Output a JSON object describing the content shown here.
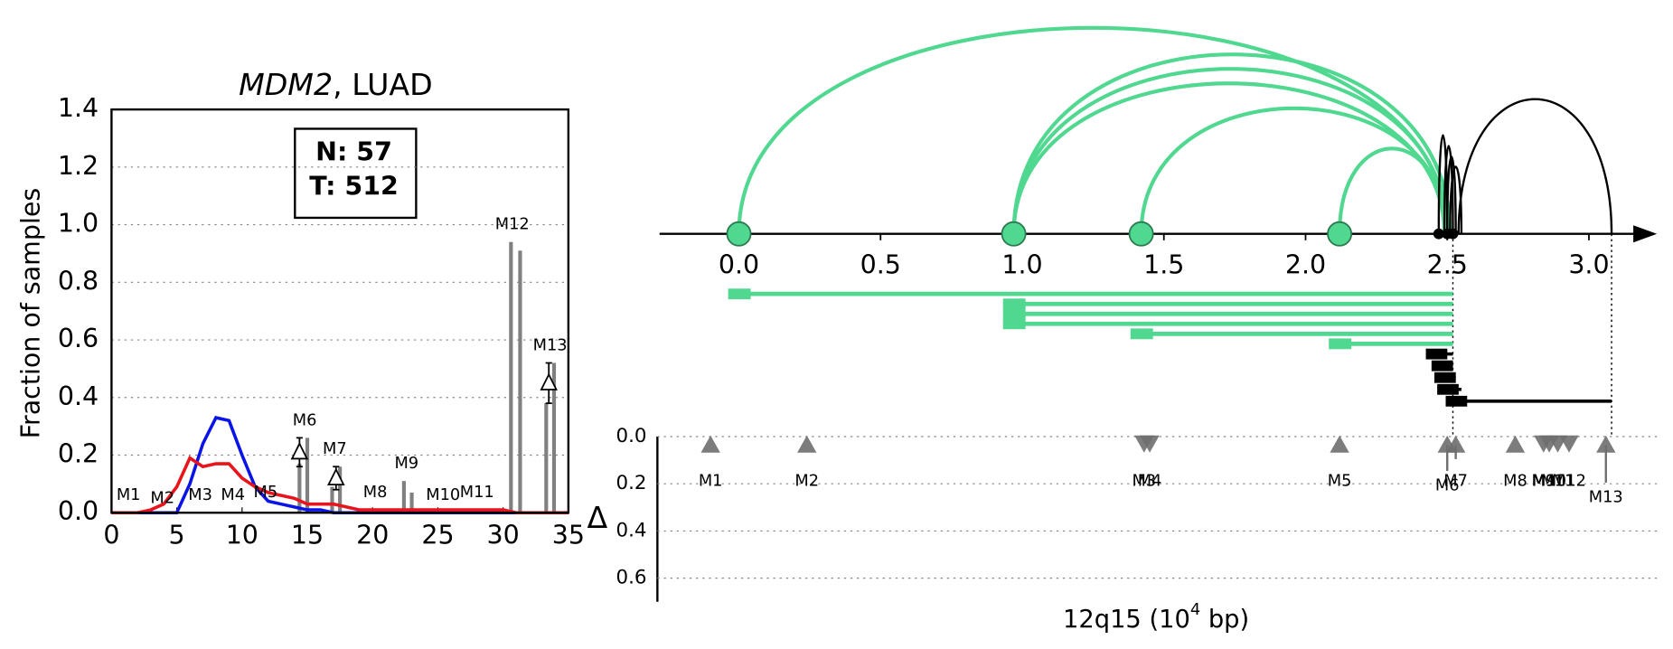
{
  "chart_data": [
    {
      "type": "line",
      "title_parts": [
        "MDM2",
        ", LUAD"
      ],
      "ylabel": "Fraction of samples",
      "annotation": [
        "N: 57",
        "T: 512"
      ],
      "xlim": [
        0,
        35
      ],
      "xticks": [
        0,
        5,
        10,
        15,
        20,
        25,
        30,
        35
      ],
      "ylim": [
        0,
        1.4
      ],
      "yticks": [
        {
          "value": 0,
          "label": "0.0"
        },
        {
          "value": 0.2,
          "label": "0.2"
        },
        {
          "value": 0.4,
          "label": "0.4"
        },
        {
          "value": 0.6,
          "label": "0.6"
        },
        {
          "value": 0.8,
          "label": "0.8"
        },
        {
          "value": 1,
          "label": "1.0"
        },
        {
          "value": 1.2,
          "label": "1.2"
        },
        {
          "value": 1.4,
          "label": "1.4"
        }
      ],
      "grid": true,
      "x": [
        0,
        1,
        2,
        3,
        4,
        5,
        6,
        7,
        8,
        9,
        10,
        11,
        12,
        13,
        14,
        15,
        16,
        17,
        18,
        19,
        20,
        21,
        22,
        23,
        24,
        25,
        26,
        27,
        28,
        29,
        30,
        31,
        32,
        33,
        34,
        35
      ],
      "series": [
        {
          "color": "#0a14e6",
          "values": [
            0,
            0,
            0,
            0,
            0,
            0,
            0.1,
            0.24,
            0.33,
            0.32,
            0.2,
            0.09,
            0.04,
            0.03,
            0.02,
            0.01,
            0.01,
            0,
            0,
            0,
            0,
            0,
            0,
            0,
            0,
            0,
            0,
            0,
            0,
            0,
            0,
            0,
            0,
            0,
            0,
            0
          ]
        },
        {
          "color": "#e8141c",
          "values": [
            0,
            0,
            0,
            0.01,
            0.03,
            0.09,
            0.19,
            0.16,
            0.17,
            0.17,
            0.12,
            0.09,
            0.07,
            0.06,
            0.05,
            0.03,
            0.03,
            0.03,
            0.02,
            0.01,
            0.01,
            0.01,
            0.01,
            0.01,
            0.01,
            0.01,
            0.01,
            0.01,
            0.01,
            0.01,
            0.01,
            0,
            0,
            0,
            0,
            0
          ]
        }
      ],
      "bars": {
        "color": "#808080",
        "x": [
          14.4,
          15.0,
          16.9,
          17.5,
          22.4,
          23.0,
          30.6,
          31.3,
          33.3,
          33.9
        ],
        "values": [
          0.17,
          0.26,
          0.09,
          0.16,
          0.11,
          0.07,
          0.94,
          0.91,
          0.38,
          0.52
        ]
      },
      "delta_markers": {
        "x": [
          14.4,
          17.2,
          33.5
        ],
        "values": [
          0.21,
          0.12,
          0.45
        ],
        "errors": [
          0.05,
          0.04,
          0.07
        ]
      },
      "region_labels": {
        "labels": [
          "M1",
          "M2",
          "M3",
          "M4",
          "M5",
          "M6",
          "M7",
          "M8",
          "M9",
          "M10",
          "M11",
          "M12",
          "M13"
        ],
        "x": [
          1.3,
          3.9,
          6.8,
          9.3,
          11.8,
          14.8,
          17.1,
          20.2,
          22.6,
          25.4,
          28.0,
          30.7,
          33.6
        ],
        "y": [
          0.06,
          0.05,
          0.06,
          0.06,
          0.07,
          0.32,
          0.22,
          0.07,
          0.17,
          0.06,
          0.07,
          1.0,
          0.58
        ]
      }
    },
    {
      "type": "arc",
      "xlim": [
        -0.28,
        3.24
      ],
      "xticks": [
        {
          "value": 0,
          "label": "0.0"
        },
        {
          "value": 0.5,
          "label": "0.5"
        },
        {
          "value": 1,
          "label": "1.0"
        },
        1.5,
        {
          "value": 2,
          "label": "2.0"
        },
        2.5,
        {
          "value": 3,
          "label": "3.0"
        }
      ],
      "green_color": "#50d890",
      "green_links": {
        "from": [
          0.0,
          0.97,
          0.97,
          0.97,
          1.42,
          2.12
        ],
        "to": [
          2.5,
          2.49,
          2.5,
          2.51,
          2.5,
          2.49
        ]
      },
      "black_links": {
        "from": [
          2.47,
          2.49,
          2.5,
          2.51,
          2.54
        ],
        "to": [
          2.5,
          2.52,
          2.53,
          2.55,
          3.08
        ]
      },
      "black_nodes": [
        2.47,
        2.5,
        2.52
      ],
      "guides": [
        2.52,
        3.08
      ]
    },
    {
      "type": "marker",
      "ylabel": "Δ",
      "xlabel_parts": [
        "12q15 (10",
        "4",
        " bp)"
      ],
      "xlim": [
        -0.28,
        3.24
      ],
      "ylim": [
        0,
        0.7
      ],
      "yticks": [
        {
          "value": 0,
          "label": "0.0"
        },
        {
          "value": 0.2,
          "label": "0.2"
        },
        {
          "value": 0.4,
          "label": "0.4"
        },
        {
          "value": 0.6,
          "label": "0.6"
        }
      ],
      "grid": true,
      "color": "#6e6e6e",
      "labels": [
        "M1",
        "M2",
        "M3",
        "M4",
        "M5",
        "M6",
        "M7",
        "M8",
        "M9",
        "M10",
        "M11",
        "M12",
        "M13"
      ],
      "x": [
        -0.1,
        0.24,
        1.43,
        1.45,
        2.12,
        2.5,
        2.53,
        2.74,
        2.84,
        2.86,
        2.89,
        2.93,
        3.06
      ],
      "delta": [
        0,
        0,
        0,
        0,
        0,
        0.1,
        0.05,
        0,
        0,
        0,
        0,
        0,
        0.15
      ],
      "direction": [
        "up",
        "up",
        "down",
        "down",
        "up",
        "up",
        "up",
        "up",
        "down",
        "down",
        "down",
        "down",
        "up"
      ]
    }
  ]
}
